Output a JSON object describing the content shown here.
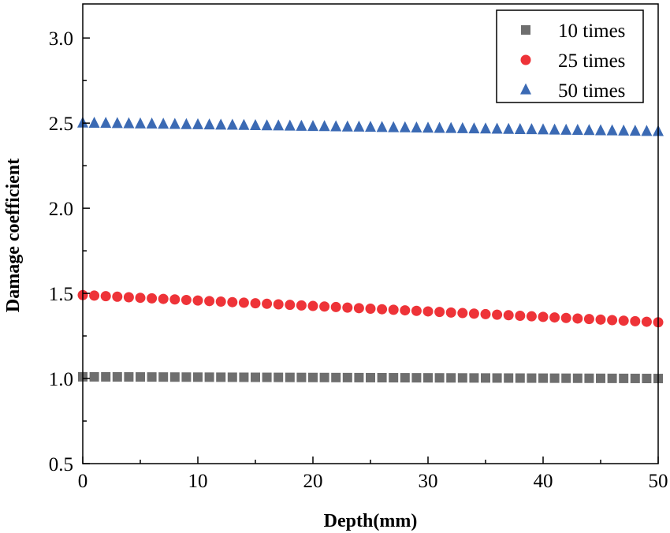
{
  "chart_data": {
    "type": "scatter",
    "title": "",
    "xlabel": "Depth(mm)",
    "ylabel": "Damage coefficient",
    "xlim": [
      0,
      50
    ],
    "ylim": [
      0.5,
      3.2
    ],
    "xticks": [
      0,
      10,
      20,
      30,
      40,
      50
    ],
    "xtick_labels": [
      "0",
      "10",
      "20",
      "30",
      "40",
      "50"
    ],
    "yticks": [
      0.5,
      1.0,
      1.5,
      2.0,
      2.5,
      3.0
    ],
    "ytick_labels": [
      "0.5",
      "1.0",
      "1.5",
      "2.0",
      "2.5",
      "3.0"
    ],
    "grid": false,
    "legend_position": "top-right",
    "series": [
      {
        "name": "10 times",
        "marker": "square",
        "color": "#6e6e6e",
        "y_start": 1.01,
        "y_end": 1.0
      },
      {
        "name": "25 times",
        "marker": "circle",
        "color": "#ee3338",
        "y_start": 1.49,
        "y_end": 1.33
      },
      {
        "name": "50 times",
        "marker": "triangle",
        "color": "#3b6ab4",
        "y_start": 2.5,
        "y_end": 2.45
      }
    ],
    "x": [
      0,
      1,
      2,
      3,
      4,
      5,
      6,
      7,
      8,
      9,
      10,
      11,
      12,
      13,
      14,
      15,
      16,
      17,
      18,
      19,
      20,
      21,
      22,
      23,
      24,
      25,
      26,
      27,
      28,
      29,
      30,
      31,
      32,
      33,
      34,
      35,
      36,
      37,
      38,
      39,
      40,
      41,
      42,
      43,
      44,
      45,
      46,
      47,
      48,
      49,
      50
    ]
  }
}
